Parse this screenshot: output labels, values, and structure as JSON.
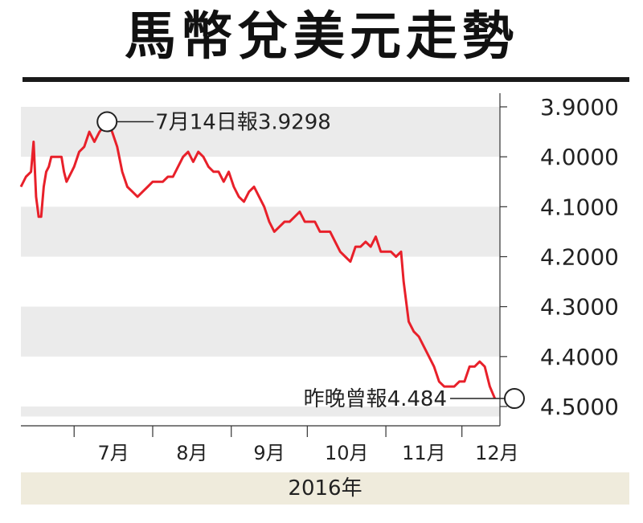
{
  "title": "馬幣兌美元走勢",
  "chart_data": {
    "type": "line",
    "title": "馬幣兌美元走勢",
    "xlabel": "2016年",
    "ylabel": "",
    "y_inverted": true,
    "ylim": [
      3.85,
      4.52
    ],
    "yticks": [
      "3.9000",
      "4.0000",
      "4.1000",
      "4.2000",
      "4.3000",
      "4.4000",
      "4.5000"
    ],
    "ytick_values": [
      3.9,
      4.0,
      4.1,
      4.2,
      4.3,
      4.4,
      4.5
    ],
    "xticks": [
      "7月",
      "8月",
      "9月",
      "10月",
      "11月",
      "12月"
    ],
    "x_domain": [
      "2016-06-10",
      "2016-12-16"
    ],
    "xtick_dates": [
      "2016-07-01",
      "2016-08-01",
      "2016-09-01",
      "2016-10-01",
      "2016-11-01",
      "2016-12-01"
    ],
    "grid": "alternating horizontal bands",
    "series": [
      {
        "color": "#e8202a",
        "points": [
          [
            "2016-06-10",
            4.06
          ],
          [
            "2016-06-12",
            4.04
          ],
          [
            "2016-06-14",
            4.03
          ],
          [
            "2016-06-15",
            3.97
          ],
          [
            "2016-06-16",
            4.08
          ],
          [
            "2016-06-17",
            4.12
          ],
          [
            "2016-06-18",
            4.12
          ],
          [
            "2016-06-19",
            4.06
          ],
          [
            "2016-06-20",
            4.03
          ],
          [
            "2016-06-21",
            4.02
          ],
          [
            "2016-06-22",
            4.0
          ],
          [
            "2016-06-24",
            4.0
          ],
          [
            "2016-06-26",
            4.0
          ],
          [
            "2016-06-27",
            4.03
          ],
          [
            "2016-06-28",
            4.05
          ],
          [
            "2016-06-30",
            4.03
          ],
          [
            "2016-07-01",
            4.02
          ],
          [
            "2016-07-03",
            3.99
          ],
          [
            "2016-07-05",
            3.98
          ],
          [
            "2016-07-07",
            3.95
          ],
          [
            "2016-07-09",
            3.97
          ],
          [
            "2016-07-11",
            3.95
          ],
          [
            "2016-07-14",
            3.9298
          ],
          [
            "2016-07-16",
            3.95
          ],
          [
            "2016-07-18",
            3.98
          ],
          [
            "2016-07-20",
            4.03
          ],
          [
            "2016-07-22",
            4.06
          ],
          [
            "2016-07-24",
            4.07
          ],
          [
            "2016-07-26",
            4.08
          ],
          [
            "2016-07-28",
            4.07
          ],
          [
            "2016-07-30",
            4.06
          ],
          [
            "2016-08-01",
            4.05
          ],
          [
            "2016-08-03",
            4.05
          ],
          [
            "2016-08-05",
            4.05
          ],
          [
            "2016-08-07",
            4.04
          ],
          [
            "2016-08-09",
            4.04
          ],
          [
            "2016-08-11",
            4.02
          ],
          [
            "2016-08-13",
            4.0
          ],
          [
            "2016-08-15",
            3.99
          ],
          [
            "2016-08-17",
            4.01
          ],
          [
            "2016-08-19",
            3.99
          ],
          [
            "2016-08-21",
            4.0
          ],
          [
            "2016-08-23",
            4.02
          ],
          [
            "2016-08-25",
            4.03
          ],
          [
            "2016-08-27",
            4.03
          ],
          [
            "2016-08-29",
            4.05
          ],
          [
            "2016-08-31",
            4.03
          ],
          [
            "2016-09-02",
            4.06
          ],
          [
            "2016-09-04",
            4.08
          ],
          [
            "2016-09-06",
            4.09
          ],
          [
            "2016-09-08",
            4.07
          ],
          [
            "2016-09-10",
            4.06
          ],
          [
            "2016-09-12",
            4.08
          ],
          [
            "2016-09-14",
            4.1
          ],
          [
            "2016-09-16",
            4.13
          ],
          [
            "2016-09-18",
            4.15
          ],
          [
            "2016-09-20",
            4.14
          ],
          [
            "2016-09-22",
            4.13
          ],
          [
            "2016-09-24",
            4.13
          ],
          [
            "2016-09-26",
            4.12
          ],
          [
            "2016-09-28",
            4.11
          ],
          [
            "2016-09-30",
            4.13
          ],
          [
            "2016-10-02",
            4.13
          ],
          [
            "2016-10-04",
            4.13
          ],
          [
            "2016-10-06",
            4.15
          ],
          [
            "2016-10-08",
            4.15
          ],
          [
            "2016-10-10",
            4.15
          ],
          [
            "2016-10-12",
            4.17
          ],
          [
            "2016-10-14",
            4.19
          ],
          [
            "2016-10-16",
            4.2
          ],
          [
            "2016-10-18",
            4.21
          ],
          [
            "2016-10-20",
            4.18
          ],
          [
            "2016-10-22",
            4.18
          ],
          [
            "2016-10-24",
            4.17
          ],
          [
            "2016-10-26",
            4.18
          ],
          [
            "2016-10-28",
            4.16
          ],
          [
            "2016-10-30",
            4.19
          ],
          [
            "2016-11-01",
            4.19
          ],
          [
            "2016-11-03",
            4.19
          ],
          [
            "2016-11-05",
            4.2
          ],
          [
            "2016-11-07",
            4.19
          ],
          [
            "2016-11-08",
            4.25
          ],
          [
            "2016-11-10",
            4.33
          ],
          [
            "2016-11-12",
            4.35
          ],
          [
            "2016-11-14",
            4.36
          ],
          [
            "2016-11-16",
            4.38
          ],
          [
            "2016-11-18",
            4.4
          ],
          [
            "2016-11-20",
            4.42
          ],
          [
            "2016-11-22",
            4.45
          ],
          [
            "2016-11-24",
            4.46
          ],
          [
            "2016-11-26",
            4.46
          ],
          [
            "2016-11-28",
            4.46
          ],
          [
            "2016-11-30",
            4.45
          ],
          [
            "2016-12-02",
            4.45
          ],
          [
            "2016-12-04",
            4.42
          ],
          [
            "2016-12-06",
            4.42
          ],
          [
            "2016-12-08",
            4.41
          ],
          [
            "2016-12-10",
            4.42
          ],
          [
            "2016-12-12",
            4.46
          ],
          [
            "2016-12-14",
            4.484
          ]
        ]
      }
    ],
    "annotations": [
      {
        "text": "7月14日報3.9298",
        "x": "2016-07-14",
        "y": 3.9298,
        "side": "right"
      },
      {
        "text": "昨晚曾報4.484",
        "x": "2016-12-14",
        "y": 4.484,
        "side": "left"
      }
    ]
  }
}
